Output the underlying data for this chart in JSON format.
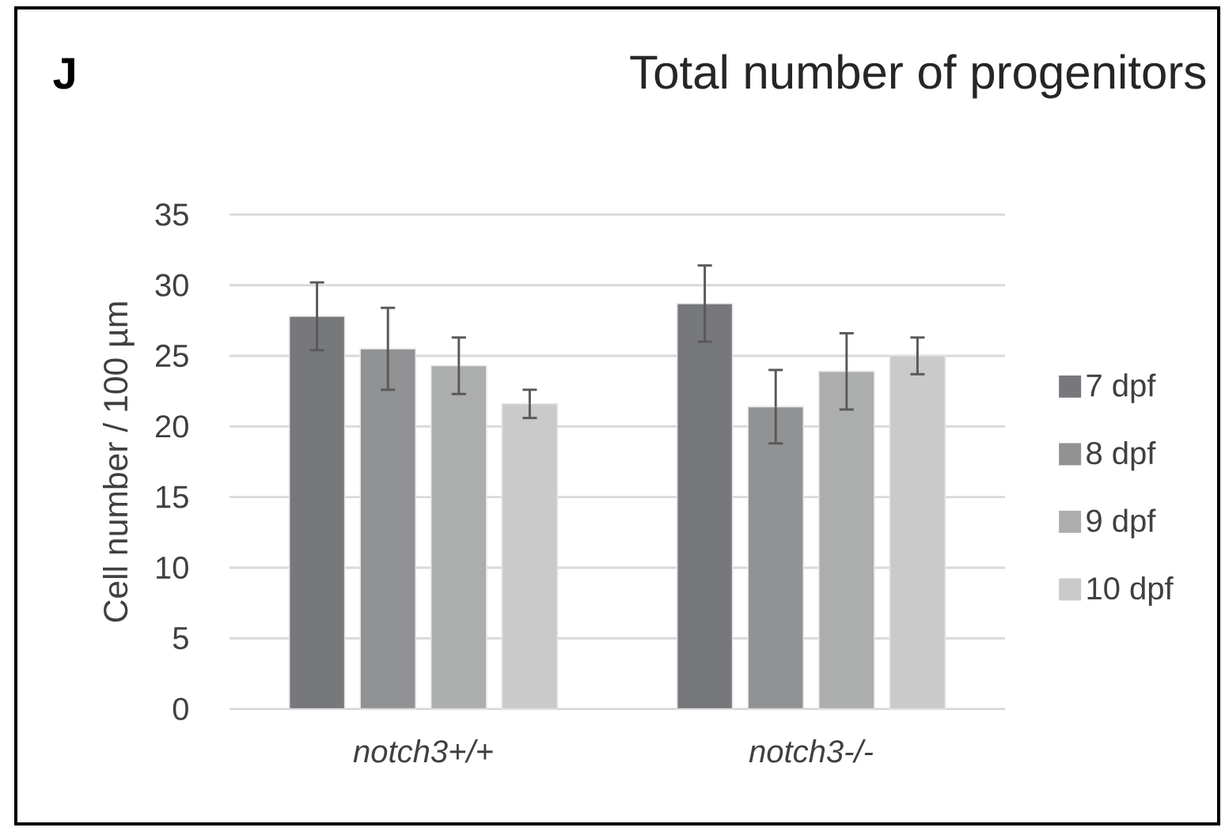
{
  "chart_data": {
    "type": "bar",
    "title": "Total number of progenitors",
    "annotations": [
      "J"
    ],
    "ylabel": "Cell number / 100 µm",
    "categories": [
      "notch3+/+",
      "notch3-/-"
    ],
    "series": [
      {
        "name": "7 dpf",
        "color": "#76787b",
        "values": [
          27.8,
          28.7
        ],
        "errors": [
          2.4,
          2.7
        ]
      },
      {
        "name": "8 dpf",
        "color": "#919294",
        "values": [
          25.5,
          21.4
        ],
        "errors": [
          2.9,
          2.6
        ]
      },
      {
        "name": "9 dpf",
        "color": "#acadad",
        "values": [
          24.3,
          23.9
        ],
        "errors": [
          2.0,
          2.7
        ]
      },
      {
        "name": "10 dpf",
        "color": "#c9cac9",
        "values": [
          21.6,
          25.0
        ],
        "errors": [
          1.0,
          1.3
        ]
      }
    ],
    "ylim": [
      0,
      35
    ],
    "yticks": [
      0,
      5,
      10,
      15,
      20,
      25,
      30,
      35
    ],
    "grid": "y",
    "legend": "right"
  }
}
